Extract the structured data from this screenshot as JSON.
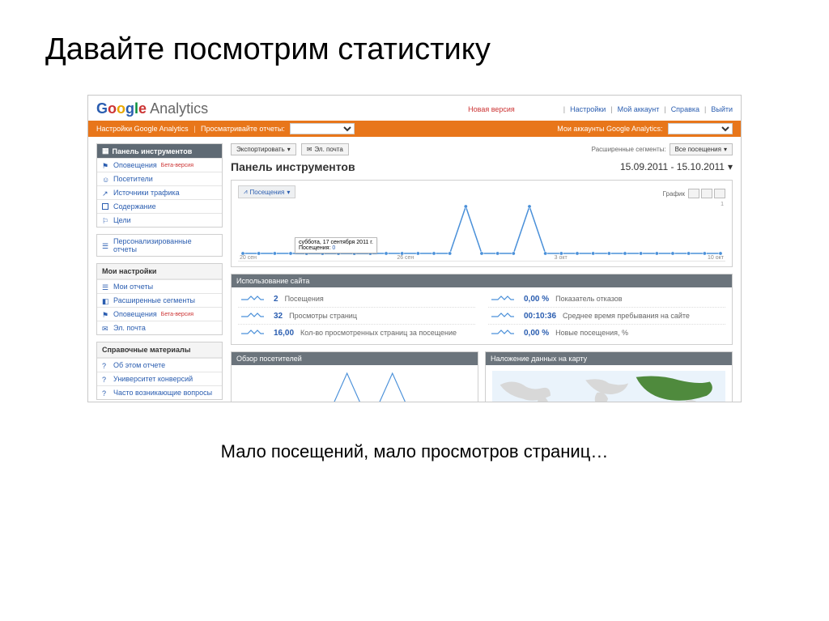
{
  "slide": {
    "title": "Давайте посмотрим статистику",
    "caption": "Мало посещений, мало просмотров страниц…"
  },
  "colors": {
    "orange": "#e8761a",
    "panel_header": "#6b747c",
    "link": "#2a5db0",
    "line": "#4a90d9",
    "dot": "#4a90d9",
    "map_highlight": "#4f8a3d",
    "map_land": "#d8d8d8"
  },
  "header": {
    "logo_text": "Google",
    "logo_sub": "Analytics",
    "new_version": "Новая версия",
    "links": [
      "Настройки",
      "Мой аккаунт",
      "Справка",
      "Выйти"
    ]
  },
  "orange_bar": {
    "left1": "Настройки Google Analytics",
    "left2": "Просматривайте отчеты:",
    "right": "Мои аккаунты Google Analytics:"
  },
  "sidebar": {
    "dashboard_label": "Панель инструментов",
    "items": [
      {
        "label": "Оповещения",
        "beta": "Бета-версия"
      },
      {
        "label": "Посетители"
      },
      {
        "label": "Источники трафика"
      },
      {
        "label": "Содержание"
      },
      {
        "label": "Цели"
      }
    ],
    "personal": {
      "label": "Персонализированные отчеты"
    },
    "my_settings": {
      "head": "Мои настройки",
      "items": [
        {
          "label": "Мои отчеты"
        },
        {
          "label": "Расширенные сегменты"
        },
        {
          "label": "Оповещения",
          "beta": "Бета-версия"
        },
        {
          "label": "Эл. почта"
        }
      ]
    },
    "help": {
      "head": "Справочные материалы",
      "items": [
        {
          "label": "Об этом отчете"
        },
        {
          "label": "Университет конверсий"
        },
        {
          "label": "Часто возникающие вопросы"
        }
      ]
    }
  },
  "main": {
    "export": "Экспортировать",
    "email": "Эл. почта",
    "seg_label": "Расширенные сегменты:",
    "seg_value": "Все посещения",
    "title": "Панель инструментов",
    "date_range": "15.09.2011 - 15.10.2011",
    "tab": "Посещения",
    "graph_label": "График",
    "tooltip_date": "суббота, 17 сентября 2011 г.",
    "tooltip_metric": "Посещения:",
    "tooltip_value": "0"
  },
  "chart": {
    "type": "line",
    "x_count": 31,
    "ylim": [
      0,
      1
    ],
    "values": [
      0,
      0,
      0,
      0,
      0,
      0,
      0,
      0,
      0,
      0,
      0,
      0,
      0,
      0,
      1,
      0,
      0,
      0,
      1,
      0,
      0,
      0,
      0,
      0,
      0,
      0,
      0,
      0,
      0,
      0,
      0
    ],
    "line_color": "#4a90d9",
    "line_width": 1.5,
    "dot_radius": 2.2,
    "mini_values": [
      0,
      0,
      0,
      1,
      0,
      1,
      0,
      0
    ],
    "x_ticks": [
      "20 сен",
      "26 сен",
      "3 окт",
      "10 окт"
    ],
    "y_max_label": "1"
  },
  "site_usage": {
    "head": "Использование сайта",
    "left": [
      {
        "value": "2",
        "label": "Посещения"
      },
      {
        "value": "32",
        "label": "Просмотры страниц"
      },
      {
        "value": "16,00",
        "label": "Кол-во просмотренных страниц за посещение"
      }
    ],
    "right": [
      {
        "value": "0,00 %",
        "label": "Показатель отказов"
      },
      {
        "value": "00:10:36",
        "label": "Среднее время пребывания на сайте"
      },
      {
        "value": "0,00 %",
        "label": "Новые посещения, %"
      }
    ]
  },
  "bottom_panels": {
    "visitors": "Обзор посетителей",
    "map": "Наложение данных на карту"
  }
}
